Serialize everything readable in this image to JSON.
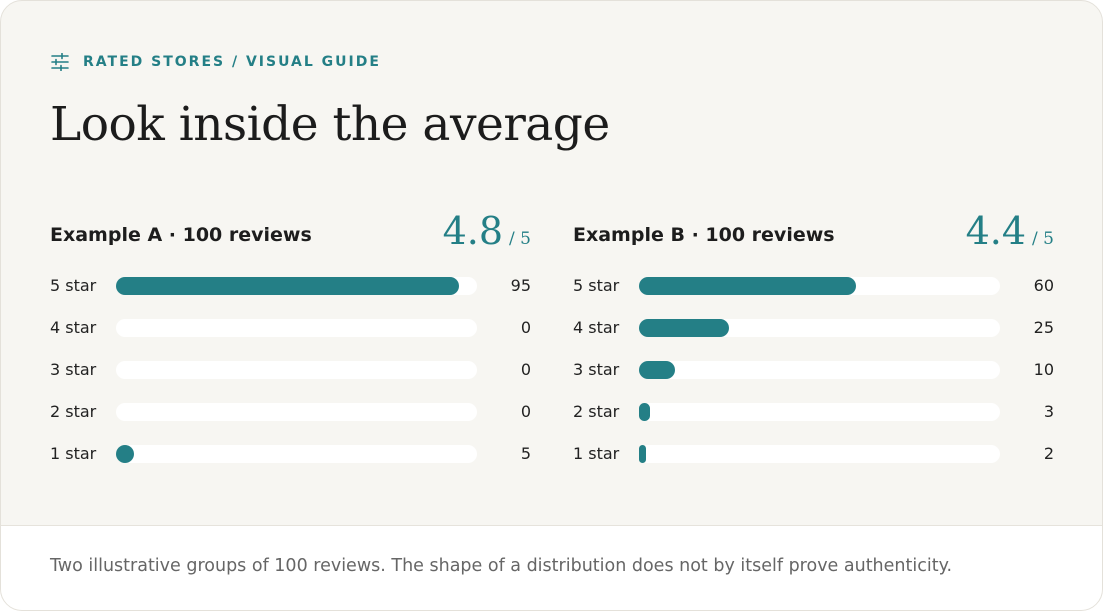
{
  "eyebrow": {
    "icon": "sliders-icon",
    "text": "RATED STORES / VISUAL GUIDE"
  },
  "title": "Look inside the average",
  "colors": {
    "accent": "#247f86",
    "track": "#ffffff",
    "background": "#f7f6f2"
  },
  "chart_data": [
    {
      "type": "bar",
      "orientation": "horizontal",
      "title": "Example A · 100 reviews",
      "score": "4.8",
      "score_max": "/ 5",
      "categories": [
        "5 star",
        "4 star",
        "3 star",
        "2 star",
        "1 star"
      ],
      "values": [
        95,
        0,
        0,
        0,
        5
      ],
      "xlim": [
        0,
        100
      ]
    },
    {
      "type": "bar",
      "orientation": "horizontal",
      "title": "Example B · 100 reviews",
      "score": "4.4",
      "score_max": "/ 5",
      "categories": [
        "5 star",
        "4 star",
        "3 star",
        "2 star",
        "1 star"
      ],
      "values": [
        60,
        25,
        10,
        3,
        2
      ],
      "xlim": [
        0,
        100
      ]
    }
  ],
  "footnote": "Two illustrative groups of 100 reviews. The shape of a distribution does not by itself prove authenticity."
}
